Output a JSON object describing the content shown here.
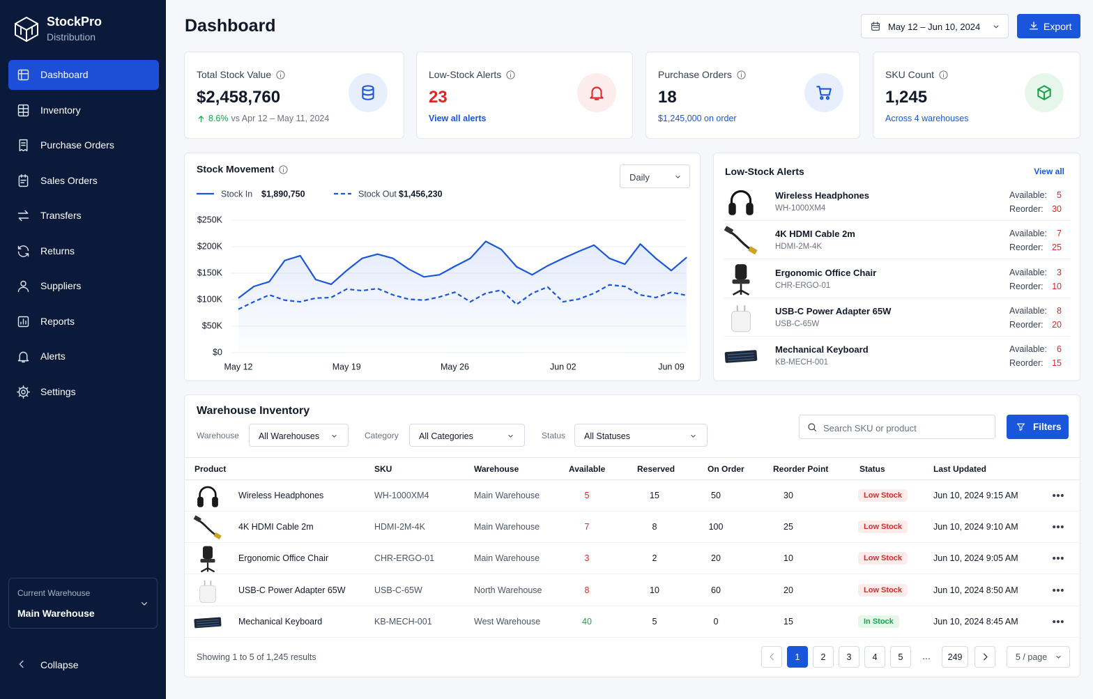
{
  "sidebar": {
    "brand": "StockPro",
    "tagline": "Distribution",
    "nav": [
      "Dashboard",
      "Inventory",
      "Purchase Orders",
      "Sales Orders",
      "Transfers",
      "Returns",
      "Suppliers",
      "Reports",
      "Alerts",
      "Settings"
    ],
    "active": 0,
    "current_warehouse_label": "Current Warehouse",
    "current_warehouse": "Main Warehouse",
    "collapse": "Collapse"
  },
  "header": {
    "title": "Dashboard",
    "date_range": "May 12 – Jun 10, 2024",
    "export": "Export"
  },
  "kpis": [
    {
      "title": "Total Stock Value",
      "value": "$2,458,760",
      "change": "8.6%",
      "note": "vs Apr 12 – May 11, 2024",
      "icon_color": "#1a56db",
      "icon_bg": "#e8effc"
    },
    {
      "title": "Low-Stock Alerts",
      "value": "23",
      "value_color": "#dc2626",
      "link": "View all alerts",
      "icon_color": "#dc2626",
      "icon_bg": "#fdecec"
    },
    {
      "title": "Purchase Orders",
      "value": "18",
      "note": "$1,245,000 on order",
      "note_color": "#1a56db",
      "icon_color": "#1a56db",
      "icon_bg": "#e8effc"
    },
    {
      "title": "SKU Count",
      "value": "1,245",
      "note": "Across 4 warehouses",
      "note_color": "#1a56db",
      "icon_color": "#16a34a",
      "icon_bg": "#e7f6ea"
    }
  ],
  "chart_data": {
    "type": "line",
    "title": "Stock Movement",
    "categories": [
      "May 12",
      null,
      null,
      null,
      null,
      null,
      null,
      "May 19",
      null,
      null,
      null,
      null,
      null,
      null,
      "May 26",
      null,
      null,
      null,
      null,
      null,
      null,
      "Jun 02",
      null,
      null,
      null,
      null,
      null,
      null,
      "Jun 09",
      null
    ],
    "series": [
      {
        "name": "Stock In",
        "total": "$1,890,750",
        "color": "#1a56db",
        "dashed": false,
        "values": [
          103000,
          125000,
          134000,
          174000,
          183000,
          138000,
          129000,
          155000,
          178000,
          186000,
          178000,
          158000,
          143000,
          147000,
          163000,
          178000,
          210000,
          195000,
          162000,
          147000,
          164000,
          178000,
          191000,
          203000,
          178000,
          167000,
          205000,
          178000,
          155000,
          180000
        ]
      },
      {
        "name": "Stock Out",
        "total": "$1,456,230",
        "color": "#1a56db",
        "dashed": true,
        "values": [
          82000,
          96000,
          109000,
          99000,
          96000,
          103000,
          104000,
          120000,
          117000,
          121000,
          109000,
          101000,
          99000,
          105000,
          114000,
          96000,
          112000,
          118000,
          91000,
          112000,
          124000,
          96000,
          101000,
          112000,
          128000,
          125000,
          109000,
          104000,
          114000,
          108000
        ]
      }
    ],
    "ylim": [
      0,
      250000
    ],
    "yticks": [
      {
        "value": 0,
        "label": "$0"
      },
      {
        "value": 50000,
        "label": "$50K"
      },
      {
        "value": 100000,
        "label": "$100K"
      },
      {
        "value": 150000,
        "label": "$150K"
      },
      {
        "value": 200000,
        "label": "$200K"
      },
      {
        "value": 250000,
        "label": "$250K"
      }
    ],
    "grid": true
  },
  "chart_controls": {
    "interval": "Daily"
  },
  "low_stock": {
    "title": "Low-Stock Alerts",
    "view_all": "View all",
    "available_label": "Available:",
    "reorder_label": "Reorder:",
    "items": [
      {
        "name": "Wireless Headphones",
        "sku": "WH-1000XM4",
        "available": 5,
        "reorder": 30
      },
      {
        "name": "4K HDMI Cable 2m",
        "sku": "HDMI-2M-4K",
        "available": 7,
        "reorder": 25
      },
      {
        "name": "Ergonomic Office Chair",
        "sku": "CHR-ERGO-01",
        "available": 3,
        "reorder": 10
      },
      {
        "name": "USB-C Power Adapter 65W",
        "sku": "USB-C-65W",
        "available": 8,
        "reorder": 20
      },
      {
        "name": "Mechanical Keyboard",
        "sku": "KB-MECH-001",
        "available": 6,
        "reorder": 15
      }
    ]
  },
  "inventory": {
    "title": "Warehouse Inventory",
    "filters": [
      {
        "label": "Warehouse",
        "value": "All Warehouses"
      },
      {
        "label": "Category",
        "value": "All Categories"
      },
      {
        "label": "Status",
        "value": "All Statuses"
      }
    ],
    "search_placeholder": "Search SKU or product",
    "filters_button": "Filters",
    "columns": [
      "Product",
      "SKU",
      "Warehouse",
      "Available",
      "Reserved",
      "On Order",
      "Reorder Point",
      "Status",
      "Last Updated"
    ],
    "rows": [
      [
        "Wireless Headphones",
        "WH-1000XM4",
        "Main Warehouse",
        5,
        15,
        50,
        30,
        "Low Stock",
        "Jun 10, 2024 9:15 AM"
      ],
      [
        "4K HDMI Cable 2m",
        "HDMI-2M-4K",
        "Main Warehouse",
        7,
        8,
        100,
        25,
        "Low Stock",
        "Jun 10, 2024 9:10 AM"
      ],
      [
        "Ergonomic Office Chair",
        "CHR-ERGO-01",
        "Main Warehouse",
        3,
        2,
        20,
        10,
        "Low Stock",
        "Jun 10, 2024 9:05 AM"
      ],
      [
        "USB-C Power Adapter 65W",
        "USB-C-65W",
        "North Warehouse",
        8,
        10,
        60,
        20,
        "Low Stock",
        "Jun 10, 2024 8:50 AM"
      ],
      [
        "Mechanical Keyboard",
        "KB-MECH-001",
        "West Warehouse",
        40,
        5,
        0,
        15,
        "In Stock",
        "Jun 10, 2024 8:45 AM"
      ]
    ],
    "summary": "Showing 1 to 5 of 1,245 results",
    "pages": [
      1,
      2,
      3,
      4,
      5,
      "…",
      249
    ],
    "current_page": 0,
    "page_size": "5 / page"
  }
}
